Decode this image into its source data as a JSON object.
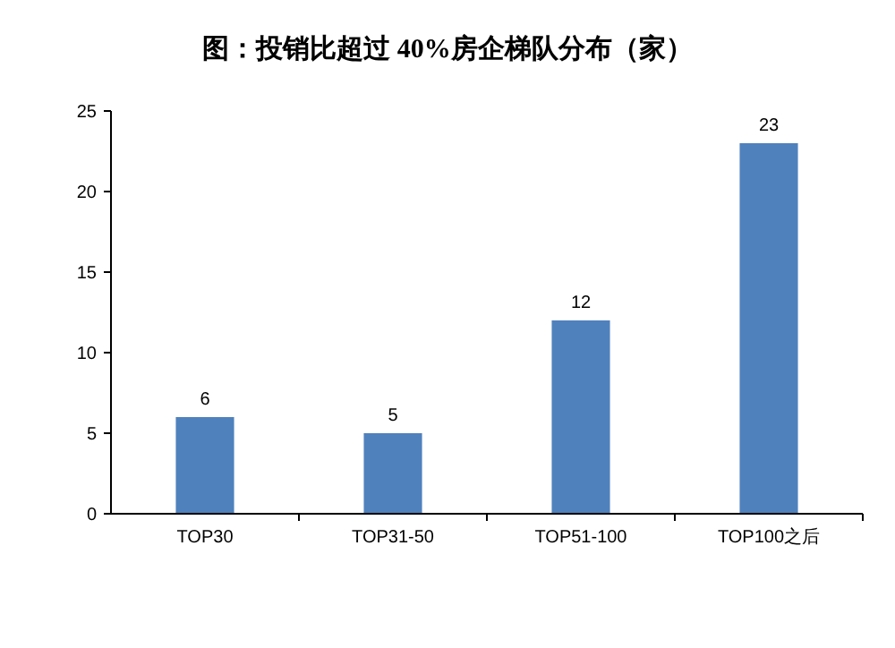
{
  "chart_data": {
    "type": "bar",
    "title": "图：投销比超过 40%房企梯队分布（家）",
    "categories": [
      "TOP30",
      "TOP31-50",
      "TOP51-100",
      "TOP100之后"
    ],
    "values": [
      6,
      5,
      12,
      23
    ],
    "color": "#4f81bd",
    "ylim": [
      0,
      25
    ],
    "yticks": [
      0,
      5,
      10,
      15,
      20,
      25
    ],
    "data_labels": true
  }
}
